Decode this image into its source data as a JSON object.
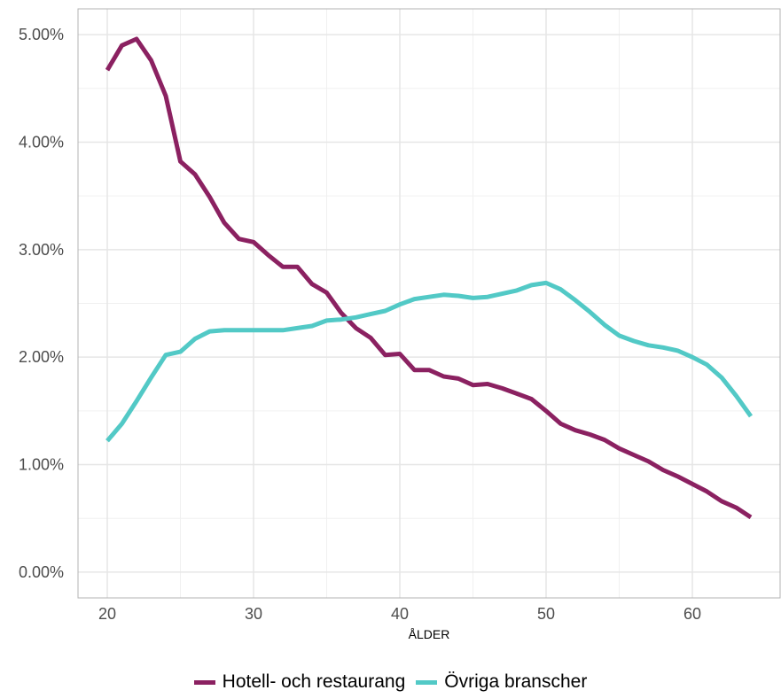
{
  "chart_data": {
    "type": "line",
    "xlabel": "ÅLDER",
    "ylabel": "",
    "xlim": [
      18,
      66
    ],
    "ylim": [
      -0.0024,
      0.0524
    ],
    "x_ticks": [
      20,
      30,
      40,
      50,
      60
    ],
    "y_ticks": [
      0,
      0.01,
      0.02,
      0.03,
      0.04,
      0.05
    ],
    "y_tick_labels": [
      "0.00%",
      "1.00%",
      "2.00%",
      "3.00%",
      "4.00%",
      "5.00%"
    ],
    "grid": true,
    "legend_position": "bottom",
    "x": [
      20,
      21,
      22,
      23,
      24,
      25,
      26,
      27,
      28,
      29,
      30,
      31,
      32,
      33,
      34,
      35,
      36,
      37,
      38,
      39,
      40,
      41,
      42,
      43,
      44,
      45,
      46,
      47,
      48,
      49,
      50,
      51,
      52,
      53,
      54,
      55,
      56,
      57,
      58,
      59,
      60,
      61,
      62,
      63,
      64
    ],
    "series": [
      {
        "name": "Hotell- och restaurang",
        "color": "#8b2161",
        "values": [
          0.0467,
          0.049,
          0.0496,
          0.0476,
          0.0443,
          0.0382,
          0.037,
          0.0349,
          0.0325,
          0.031,
          0.0307,
          0.0295,
          0.0284,
          0.0284,
          0.0268,
          0.026,
          0.0241,
          0.0227,
          0.0218,
          0.0202,
          0.0203,
          0.0188,
          0.0188,
          0.0182,
          0.018,
          0.0174,
          0.0175,
          0.0171,
          0.0166,
          0.0161,
          0.015,
          0.0138,
          0.0132,
          0.0128,
          0.0123,
          0.0115,
          0.0109,
          0.0103,
          0.0095,
          0.0089,
          0.0082,
          0.0075,
          0.0066,
          0.006,
          0.0051
        ]
      },
      {
        "name": "Övriga branscher",
        "color": "#52c9c6",
        "values": [
          0.0122,
          0.0138,
          0.0159,
          0.0181,
          0.0202,
          0.0205,
          0.0217,
          0.0224,
          0.0225,
          0.0225,
          0.0225,
          0.0225,
          0.0225,
          0.0227,
          0.0229,
          0.0234,
          0.0235,
          0.0237,
          0.024,
          0.0243,
          0.0249,
          0.0254,
          0.0256,
          0.0258,
          0.0257,
          0.0255,
          0.0256,
          0.0259,
          0.0262,
          0.0267,
          0.0269,
          0.0263,
          0.0253,
          0.0242,
          0.023,
          0.022,
          0.0215,
          0.0211,
          0.0209,
          0.0206,
          0.02,
          0.0193,
          0.0181,
          0.0164,
          0.0145
        ]
      }
    ]
  }
}
